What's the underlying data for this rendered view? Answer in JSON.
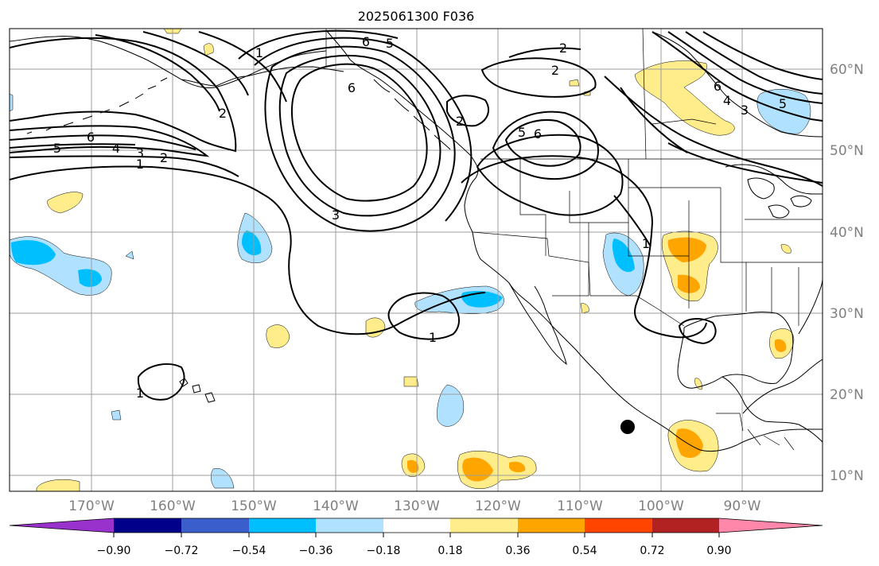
{
  "title": "2025061300 F036",
  "lat_labels": [
    "60°N",
    "50°N",
    "40°N",
    "30°N",
    "20°N",
    "10°N"
  ],
  "lon_labels": [
    "170°W",
    "160°W",
    "150°W",
    "140°W",
    "130°W",
    "120°W",
    "110°W",
    "100°W",
    "90°W"
  ],
  "colorbar": {
    "ticks": [
      "−0.90",
      "−0.72",
      "−0.54",
      "−0.36",
      "−0.18",
      "0.18",
      "0.36",
      "0.54",
      "0.72",
      "0.90"
    ],
    "colors": [
      "#9932cc",
      "#00008b",
      "#3a5fcd",
      "#00bfff",
      "#b0e2ff",
      "#ffffff",
      "#ffec8b",
      "#ffa500",
      "#ff4500",
      "#b22222",
      "#ff88aa"
    ]
  },
  "contour_labels": [
    "6",
    "5",
    "6",
    "5",
    "4",
    "3",
    "2",
    "1",
    "1",
    "2",
    "2",
    "6",
    "5",
    "6",
    "2",
    "2",
    "6",
    "4",
    "3",
    "5",
    "1",
    "1",
    "1",
    "3"
  ],
  "marker": "storm-center-dot"
}
